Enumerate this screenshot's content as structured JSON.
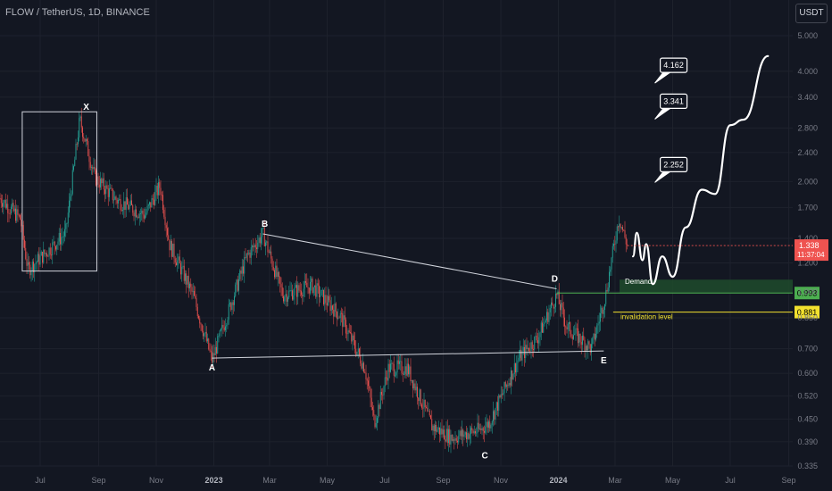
{
  "header": {
    "symbol": "FLOW / TetherUS, 1D, BINANCE",
    "currency": "USDT"
  },
  "chart_data": {
    "type": "candlestick",
    "price_axis": {
      "scale": "log",
      "ticks": [
        5.0,
        4.0,
        3.4,
        2.8,
        2.4,
        2.0,
        1.7,
        1.4,
        1.2,
        1.0,
        0.85,
        0.7,
        0.6,
        0.52,
        0.45,
        0.39,
        0.335
      ],
      "tick_labels": [
        "5.000",
        "4.000",
        "3.400",
        "2.800",
        "2.400",
        "2.000",
        "1.700",
        "1.400",
        "1.200",
        "1.000",
        "0.850",
        "0.700",
        "0.600",
        "0.520",
        "0.450",
        "0.390",
        "0.335"
      ]
    },
    "time_axis": {
      "labels": [
        "Jul",
        "Sep",
        "Nov",
        "2023",
        "Mar",
        "May",
        "Jul",
        "Sep",
        "Nov",
        "2024",
        "Mar",
        "May",
        "Jul",
        "Sep"
      ],
      "dates": [
        "2022-07-01",
        "2022-09-01",
        "2022-11-01",
        "2023-01-01",
        "2023-03-01",
        "2023-05-01",
        "2023-07-01",
        "2023-09-01",
        "2023-11-01",
        "2024-01-01",
        "2024-03-01",
        "2024-05-01",
        "2024-07-01",
        "2024-09-01"
      ]
    },
    "price_path": [
      {
        "date": "2022-05-20",
        "price": 1.8
      },
      {
        "date": "2022-06-10",
        "price": 1.58
      },
      {
        "date": "2022-06-18",
        "price": 1.15
      },
      {
        "date": "2022-07-10",
        "price": 1.3
      },
      {
        "date": "2022-07-28",
        "price": 1.45
      },
      {
        "date": "2022-08-12",
        "price": 2.95
      },
      {
        "date": "2022-08-28",
        "price": 2.05
      },
      {
        "date": "2022-09-20",
        "price": 1.78
      },
      {
        "date": "2022-10-20",
        "price": 1.62
      },
      {
        "date": "2022-11-05",
        "price": 1.95
      },
      {
        "date": "2022-11-15",
        "price": 1.35
      },
      {
        "date": "2022-12-10",
        "price": 0.98
      },
      {
        "date": "2022-12-30",
        "price": 0.65
      },
      {
        "date": "2023-02-05",
        "price": 1.25
      },
      {
        "date": "2023-02-22",
        "price": 1.44
      },
      {
        "date": "2023-03-15",
        "price": 0.98
      },
      {
        "date": "2023-04-15",
        "price": 1.04
      },
      {
        "date": "2023-05-15",
        "price": 0.86
      },
      {
        "date": "2023-06-10",
        "price": 0.62
      },
      {
        "date": "2023-06-20",
        "price": 0.44
      },
      {
        "date": "2023-07-05",
        "price": 0.62
      },
      {
        "date": "2023-07-25",
        "price": 0.62
      },
      {
        "date": "2023-08-20",
        "price": 0.43
      },
      {
        "date": "2023-09-10",
        "price": 0.4
      },
      {
        "date": "2023-10-10",
        "price": 0.42
      },
      {
        "date": "2023-10-20",
        "price": 0.44
      },
      {
        "date": "2023-11-20",
        "price": 0.66
      },
      {
        "date": "2023-12-10",
        "price": 0.75
      },
      {
        "date": "2023-12-30",
        "price": 0.98
      },
      {
        "date": "2024-01-10",
        "price": 0.8
      },
      {
        "date": "2024-02-05",
        "price": 0.7
      },
      {
        "date": "2024-02-20",
        "price": 0.98
      },
      {
        "date": "2024-03-05",
        "price": 1.6
      },
      {
        "date": "2024-03-14",
        "price": 1.338
      }
    ],
    "current_price": {
      "value": "1.338",
      "countdown": "11:37:04"
    },
    "levels": [
      {
        "label": "Demand",
        "price": 0.993,
        "value_label": "0.993",
        "color": "#4caf50"
      },
      {
        "label": "invalidation level",
        "price": 0.881,
        "value_label": "0.881",
        "color": "#f2e12e"
      }
    ],
    "demand_zone": {
      "from_price": 0.993,
      "to_price": 1.08,
      "color": "#1f4b2c"
    },
    "pattern_points": [
      {
        "label": "X",
        "date": "2022-08-15",
        "price": 3.05
      },
      {
        "label": "A",
        "date": "2022-12-30",
        "price": 0.66
      },
      {
        "label": "B",
        "date": "2023-02-22",
        "price": 1.44
      },
      {
        "label": "C",
        "date": "2023-10-15",
        "price": 0.38
      },
      {
        "label": "D",
        "date": "2023-12-30",
        "price": 1.02
      },
      {
        "label": "E",
        "date": "2024-02-18",
        "price": 0.69
      }
    ],
    "x_box": {
      "from_date": "2022-06-12",
      "to_date": "2022-08-30",
      "low": 1.14,
      "high": 3.1
    },
    "projection": [
      {
        "date": "2024-03-20",
        "price": 1.25
      },
      {
        "date": "2024-03-24",
        "price": 1.45
      },
      {
        "date": "2024-03-30",
        "price": 1.22
      },
      {
        "date": "2024-04-03",
        "price": 1.35
      },
      {
        "date": "2024-04-10",
        "price": 1.05
      },
      {
        "date": "2024-04-20",
        "price": 1.25
      },
      {
        "date": "2024-05-01",
        "price": 1.1
      },
      {
        "date": "2024-05-15",
        "price": 1.5
      },
      {
        "date": "2024-06-01",
        "price": 1.9
      },
      {
        "date": "2024-06-15",
        "price": 1.85
      },
      {
        "date": "2024-07-01",
        "price": 2.85
      },
      {
        "date": "2024-07-15",
        "price": 2.95
      },
      {
        "date": "2024-08-10",
        "price": 4.4
      }
    ],
    "targets": [
      {
        "value": "4.162",
        "date": "2024-04-15",
        "price": 4.2
      },
      {
        "value": "3.341",
        "date": "2024-04-15",
        "price": 3.35
      },
      {
        "value": "2.252",
        "date": "2024-04-15",
        "price": 2.25
      }
    ]
  }
}
